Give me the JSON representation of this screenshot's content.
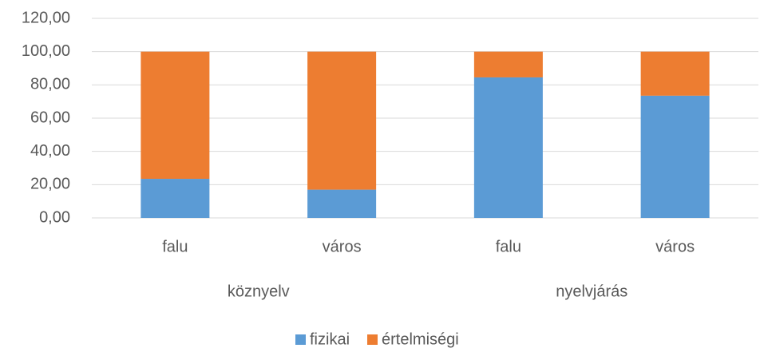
{
  "chart_data": {
    "type": "stacked_bar",
    "categories": [
      "falu",
      "város",
      "falu",
      "város"
    ],
    "category_groups": [
      "köznyelv",
      "nyelvjárás"
    ],
    "series": [
      {
        "name": "fizikai",
        "color": "#5b9bd5",
        "values": [
          23.5,
          17,
          84.5,
          73.5
        ]
      },
      {
        "name": "értelmiségi",
        "color": "#ed7d31",
        "values": [
          76.5,
          83,
          15.5,
          26.5
        ]
      }
    ],
    "ylim": [
      0,
      120
    ],
    "yticks": [
      {
        "value": 0,
        "label": "0,00"
      },
      {
        "value": 20,
        "label": "20,00"
      },
      {
        "value": 40,
        "label": "40,00"
      },
      {
        "value": 60,
        "label": "60,00"
      },
      {
        "value": 80,
        "label": "80,00"
      },
      {
        "value": 100,
        "label": "100,00"
      },
      {
        "value": 120,
        "label": "120,00"
      }
    ],
    "grid": true,
    "legend": "bottom"
  }
}
